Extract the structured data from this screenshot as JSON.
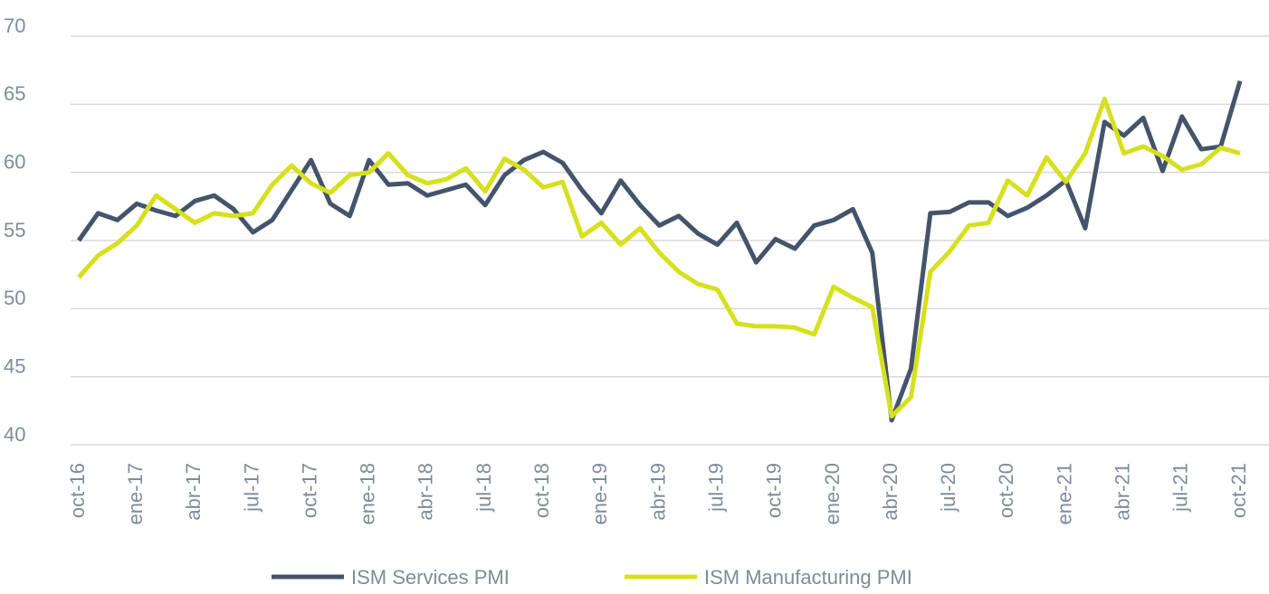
{
  "chart_data": {
    "type": "line",
    "categories": [
      "oct-16",
      null,
      null,
      "ene-17",
      null,
      null,
      "abr-17",
      null,
      null,
      "jul-17",
      null,
      null,
      "oct-17",
      null,
      null,
      "ene-18",
      null,
      null,
      "abr-18",
      null,
      null,
      "jul-18",
      null,
      null,
      "oct-18",
      null,
      null,
      "ene-19",
      null,
      null,
      "abr-19",
      null,
      null,
      "jul-19",
      null,
      null,
      "oct-19",
      null,
      null,
      "ene-20",
      null,
      null,
      "abr-20",
      null,
      null,
      "jul-20",
      null,
      null,
      "oct-20",
      null,
      null,
      "ene-21",
      null,
      null,
      "abr-21",
      null,
      null,
      "jul-21",
      null,
      null,
      "oct-21"
    ],
    "series": [
      {
        "name": "ISM Services PMI",
        "color": "#44546a",
        "values": [
          55,
          57.0,
          56.5,
          57.7,
          57.2,
          56.8,
          57.9,
          58.3,
          57.3,
          55.6,
          56.5,
          58.7,
          60.9,
          57.7,
          56.8,
          60.9,
          59.1,
          59.2,
          58.3,
          58.7,
          59.1,
          57.6,
          59.8,
          60.9,
          61.5,
          60.7,
          58.7,
          57.0,
          59.4,
          57.6,
          56.1,
          56.8,
          55.5,
          54.7,
          56.3,
          53.4,
          55.1,
          54.4,
          56.1,
          56.5,
          57.3,
          54.1,
          41.8,
          45.6,
          57.0,
          57.1,
          57.8,
          57.8,
          56.8,
          57.4,
          58.3,
          59.4,
          55.9,
          63.7,
          62.7,
          64.0,
          60.1,
          64.1,
          61.7,
          61.9,
          66.7
        ]
      },
      {
        "name": "ISM Manufacturing PMI",
        "color": "#d6e01c",
        "values": [
          52.3,
          53.9,
          54.8,
          56.1,
          58.3,
          57.3,
          56.3,
          57.0,
          56.8,
          57.0,
          59.1,
          60.5,
          59.2,
          58.5,
          59.8,
          60.0,
          61.4,
          59.8,
          59.2,
          59.5,
          60.3,
          58.6,
          61.0,
          60.2,
          58.9,
          59.3,
          55.3,
          56.3,
          54.7,
          55.9,
          54.1,
          52.7,
          51.8,
          51.4,
          48.9,
          48.7,
          48.7,
          48.6,
          48.1,
          51.6,
          50.8,
          50.1,
          42.1,
          43.5,
          52.7,
          54.2,
          56.1,
          56.3,
          59.4,
          58.3,
          61.1,
          59.3,
          61.4,
          65.4,
          61.4,
          61.9,
          61.2,
          60.2,
          60.6,
          61.8,
          61.4
        ]
      }
    ],
    "ylim": [
      40,
      70
    ],
    "yticks": [
      40,
      45,
      50,
      55,
      60,
      65,
      70
    ],
    "grid": true,
    "legend": "bottom"
  }
}
